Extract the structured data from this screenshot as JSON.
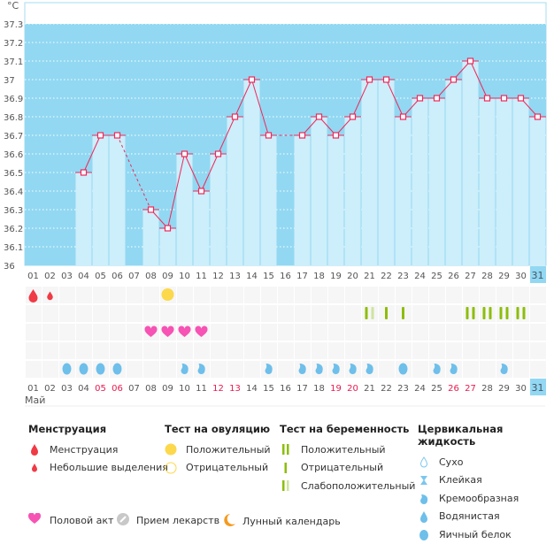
{
  "chart_data": {
    "type": "bar",
    "ylabel": "°C",
    "ylim": [
      36,
      37.3
    ],
    "yticks": [
      "36",
      "36.1",
      "36.2",
      "36.3",
      "36.4",
      "36.5",
      "36.6",
      "36.7",
      "36.8",
      "36.9",
      "37",
      "37.1",
      "37.2",
      "37.3"
    ],
    "grid": true,
    "categories": [
      "01",
      "02",
      "03",
      "04",
      "05",
      "06",
      "07",
      "08",
      "09",
      "10",
      "11",
      "12",
      "13",
      "14",
      "15",
      "16",
      "17",
      "18",
      "19",
      "20",
      "21",
      "22",
      "23",
      "24",
      "25",
      "26",
      "27",
      "28",
      "29",
      "30",
      "31"
    ],
    "values": [
      null,
      null,
      null,
      36.5,
      36.7,
      36.7,
      null,
      36.3,
      36.2,
      36.6,
      36.4,
      36.6,
      36.8,
      37.0,
      36.7,
      null,
      36.7,
      36.8,
      36.7,
      36.8,
      37.0,
      37.0,
      36.8,
      36.9,
      36.9,
      37.0,
      37.1,
      36.9,
      36.9,
      36.9,
      36.8
    ],
    "highlight_day": "31",
    "weekend_days": [
      "05",
      "06",
      "12",
      "13",
      "19",
      "20",
      "26",
      "27"
    ],
    "month": "Май",
    "colors": {
      "bg": "#92d8f2",
      "bar": "#cdeefb",
      "line": "#f0285a",
      "weekend": "#e8194f",
      "grid": "#ffffff"
    },
    "menstruation": {
      "01": "menstruation",
      "02": "spotting"
    },
    "ovulation": {
      "09": "positive"
    },
    "pregnancy": {
      "21": "weak",
      "22": "negative",
      "23": "negative",
      "27": "positive",
      "28": "positive",
      "29": "positive",
      "30": "positive"
    },
    "intercourse": [
      "08",
      "09",
      "10",
      "11"
    ],
    "cervical": {
      "03": "egg-white",
      "04": "egg-white",
      "05": "egg-white",
      "06": "egg-white",
      "10": "creamy",
      "11": "creamy",
      "15": "creamy",
      "17": "creamy",
      "18": "creamy",
      "19": "creamy",
      "20": "creamy",
      "21": "creamy",
      "23": "egg-white",
      "25": "creamy",
      "26": "creamy",
      "29": "creamy"
    }
  },
  "legend": {
    "menstruation": {
      "title": "Менструация",
      "items": [
        "Менструация",
        "Небольшие выделения"
      ]
    },
    "ovulation": {
      "title": "Тест на овуляцию",
      "items": [
        "Положительный",
        "Отрицательный"
      ]
    },
    "pregnancy": {
      "title": "Тест на беременность",
      "items": [
        "Положительный",
        "Отрицательный",
        "Слабоположительный"
      ]
    },
    "cervical": {
      "title": "Цервикальная жидкость",
      "items": [
        "Сухо",
        "Клейкая",
        "Кремообразная",
        "Водянистая",
        "Яичный белок"
      ]
    },
    "bottom": [
      "Половой акт",
      "Прием лекарств",
      "Лунный календарь"
    ]
  }
}
